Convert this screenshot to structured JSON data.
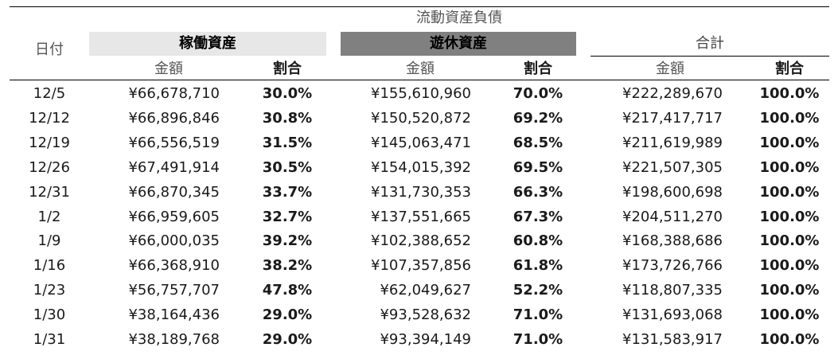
{
  "header": {
    "title": "流動資産負債",
    "date_label": "日付",
    "groups": [
      {
        "label": "稼働資産"
      },
      {
        "label": "遊休資産"
      },
      {
        "label": "合計"
      }
    ],
    "amount_label": "金額",
    "ratio_label": "割合"
  },
  "rows": [
    {
      "date": "12/5",
      "a1": "¥66,678,710",
      "r1": "30.0%",
      "a2": "¥155,610,960",
      "r2": "70.0%",
      "a3": "¥222,289,670",
      "r3": "100.0%"
    },
    {
      "date": "12/12",
      "a1": "¥66,896,846",
      "r1": "30.8%",
      "a2": "¥150,520,872",
      "r2": "69.2%",
      "a3": "¥217,417,717",
      "r3": "100.0%"
    },
    {
      "date": "12/19",
      "a1": "¥66,556,519",
      "r1": "31.5%",
      "a2": "¥145,063,471",
      "r2": "68.5%",
      "a3": "¥211,619,989",
      "r3": "100.0%"
    },
    {
      "date": "12/26",
      "a1": "¥67,491,914",
      "r1": "30.5%",
      "a2": "¥154,015,392",
      "r2": "69.5%",
      "a3": "¥221,507,305",
      "r3": "100.0%"
    },
    {
      "date": "12/31",
      "a1": "¥66,870,345",
      "r1": "33.7%",
      "a2": "¥131,730,353",
      "r2": "66.3%",
      "a3": "¥198,600,698",
      "r3": "100.0%"
    },
    {
      "date": "1/2",
      "a1": "¥66,959,605",
      "r1": "32.7%",
      "a2": "¥137,551,665",
      "r2": "67.3%",
      "a3": "¥204,511,270",
      "r3": "100.0%"
    },
    {
      "date": "1/9",
      "a1": "¥66,000,035",
      "r1": "39.2%",
      "a2": "¥102,388,652",
      "r2": "60.8%",
      "a3": "¥168,388,686",
      "r3": "100.0%"
    },
    {
      "date": "1/16",
      "a1": "¥66,368,910",
      "r1": "38.2%",
      "a2": "¥107,357,856",
      "r2": "61.8%",
      "a3": "¥173,726,766",
      "r3": "100.0%"
    },
    {
      "date": "1/23",
      "a1": "¥56,757,707",
      "r1": "47.8%",
      "a2": "¥62,049,627",
      "r2": "52.2%",
      "a3": "¥118,807,335",
      "r3": "100.0%"
    },
    {
      "date": "1/30",
      "a1": "¥38,164,436",
      "r1": "29.0%",
      "a2": "¥93,528,632",
      "r2": "71.0%",
      "a3": "¥131,693,068",
      "r3": "100.0%"
    },
    {
      "date": "1/31",
      "a1": "¥38,189,768",
      "r1": "29.0%",
      "a2": "¥93,394,149",
      "r2": "71.0%",
      "a3": "¥131,583,917",
      "r3": "100.0%"
    }
  ],
  "colors": {
    "active_header_bg": "#e7e7e7",
    "idle_header_bg": "#808080"
  }
}
